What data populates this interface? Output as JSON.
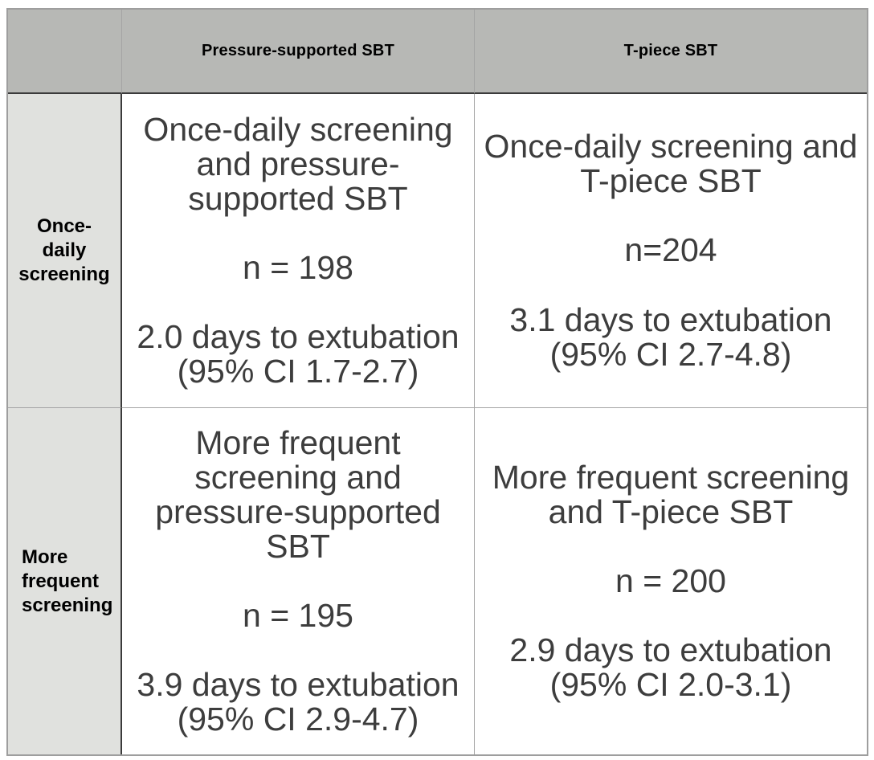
{
  "table": {
    "corner_label": "",
    "col_headers": {
      "pressure": "Pressure-supported SBT",
      "tpiece": "T-piece SBT"
    },
    "rows": [
      {
        "label": "Once-\ndaily\nscreening",
        "cells": [
          {
            "title": "Once-daily screening\nand pressure-\nsupported SBT",
            "n_line": "n = 198",
            "outcome": "2.0 days to extubation\n(95% CI 1.7-2.7)"
          },
          {
            "title": "Once-daily screening and\nT-piece SBT",
            "n_line": "n=204",
            "outcome": "3.1 days to extubation\n(95% CI 2.7-4.8)"
          }
        ]
      },
      {
        "label": "More\nfrequent\nscreening",
        "cells": [
          {
            "title": "More frequent\nscreening and\npressure-supported\nSBT",
            "n_line": "n = 195",
            "outcome": "3.9 days to extubation\n(95% CI 2.9-4.7)"
          },
          {
            "title": "More frequent screening\nand T-piece SBT",
            "n_line": "n = 200",
            "outcome": "2.9 days to extubation\n(95% CI 2.0-3.1)"
          }
        ]
      }
    ]
  },
  "colors": {
    "header_bg": "#b7b8b5",
    "row_label_bg": "#e0e1de",
    "dark_border": "#3b3b3b",
    "gray_border": "#9e9e9e",
    "body_text": "#3d3d3d",
    "header_text": "#000000"
  },
  "chart_data": {
    "type": "table",
    "title": "",
    "columns": [
      "",
      "Pressure-supported SBT",
      "T-piece SBT"
    ],
    "rows": [
      {
        "row_label": "Once-daily screening",
        "cells": [
          {
            "arm": "Once-daily screening and pressure-supported SBT",
            "n": 198,
            "days_to_extubation": 2.0,
            "ci_95": "1.7-2.7"
          },
          {
            "arm": "Once-daily screening and T-piece SBT",
            "n": 204,
            "days_to_extubation": 3.1,
            "ci_95": "2.7-4.8"
          }
        ]
      },
      {
        "row_label": "More frequent screening",
        "cells": [
          {
            "arm": "More frequent screening and pressure-supported SBT",
            "n": 195,
            "days_to_extubation": 3.9,
            "ci_95": "2.9-4.7"
          },
          {
            "arm": "More frequent screening and T-piece SBT",
            "n": 200,
            "days_to_extubation": 2.9,
            "ci_95": "2.0-3.1"
          }
        ]
      }
    ]
  }
}
